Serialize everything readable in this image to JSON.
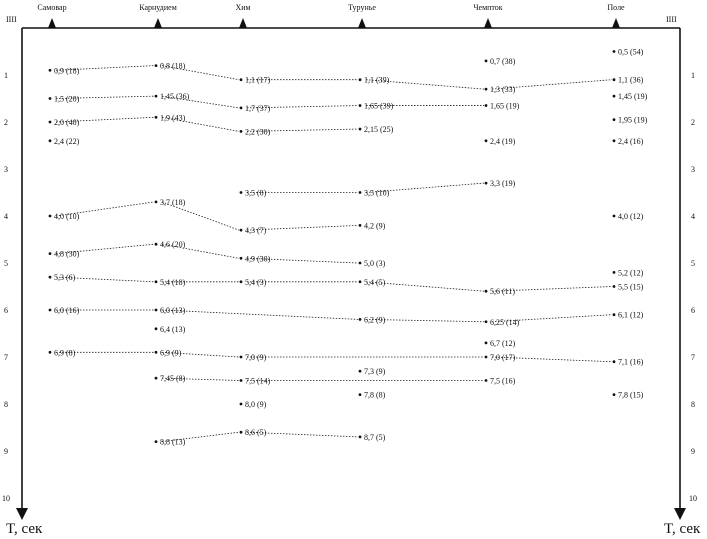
{
  "stations": [
    "Самовар",
    "Карнудием",
    "Хим",
    "Турунье",
    "Чемпток",
    "Поле"
  ],
  "port_labels": {
    "left": "IIII",
    "right": "IIII"
  },
  "axis": {
    "label_left": "T, сек",
    "label_right": "T, сек",
    "ticks": [
      1,
      2,
      3,
      4,
      5,
      6,
      7,
      8,
      9,
      10
    ],
    "t_range": [
      0,
      10
    ]
  },
  "points": [
    {
      "id": "a1",
      "station": 0,
      "t": 0.9,
      "label": "0,9 (18)"
    },
    {
      "id": "a2",
      "station": 0,
      "t": 1.5,
      "label": "1,5 (20)"
    },
    {
      "id": "a3",
      "station": 0,
      "t": 2.0,
      "label": "2,0 (40)"
    },
    {
      "id": "a4",
      "station": 0,
      "t": 2.4,
      "label": "2,4 (22)"
    },
    {
      "id": "a5",
      "station": 0,
      "t": 4.0,
      "label": "4,0 (10)"
    },
    {
      "id": "a6",
      "station": 0,
      "t": 4.8,
      "label": "4,8 (30)"
    },
    {
      "id": "a7",
      "station": 0,
      "t": 5.3,
      "label": "5,3 (6)"
    },
    {
      "id": "a8",
      "station": 0,
      "t": 6.0,
      "label": "6,0 (16)"
    },
    {
      "id": "a9",
      "station": 0,
      "t": 6.9,
      "label": "6,9 (8)"
    },
    {
      "id": "b1",
      "station": 1,
      "t": 0.8,
      "label": "0,8 (18)"
    },
    {
      "id": "b2",
      "station": 1,
      "t": 1.45,
      "label": "1,45 (36)"
    },
    {
      "id": "b3",
      "station": 1,
      "t": 1.9,
      "label": "1,9 (43)"
    },
    {
      "id": "b4",
      "station": 1,
      "t": 3.7,
      "label": "3,7 (18)"
    },
    {
      "id": "b5",
      "station": 1,
      "t": 4.6,
      "label": "4,6 (20)"
    },
    {
      "id": "b6",
      "station": 1,
      "t": 5.4,
      "label": "5,4 (18)"
    },
    {
      "id": "b7",
      "station": 1,
      "t": 6.0,
      "label": "6,0 (13)"
    },
    {
      "id": "b8",
      "station": 1,
      "t": 6.4,
      "label": "6,4 (13)"
    },
    {
      "id": "b9",
      "station": 1,
      "t": 6.9,
      "label": "6,9 (9)"
    },
    {
      "id": "b10",
      "station": 1,
      "t": 7.45,
      "label": "7,45 (8)"
    },
    {
      "id": "b11",
      "station": 1,
      "t": 8.8,
      "label": "8,8 (13)"
    },
    {
      "id": "c1",
      "station": 2,
      "t": 1.1,
      "label": "1,1 (17)"
    },
    {
      "id": "c2",
      "station": 2,
      "t": 1.7,
      "label": "1,7 (37)"
    },
    {
      "id": "c3",
      "station": 2,
      "t": 2.2,
      "label": "2,2 (30)"
    },
    {
      "id": "c4",
      "station": 2,
      "t": 3.5,
      "label": "3,5 (8)"
    },
    {
      "id": "c5",
      "station": 2,
      "t": 4.3,
      "label": "4,3 (7)"
    },
    {
      "id": "c6",
      "station": 2,
      "t": 4.9,
      "label": "4,9 (30)"
    },
    {
      "id": "c7",
      "station": 2,
      "t": 5.4,
      "label": "5,4 (3)"
    },
    {
      "id": "c8",
      "station": 2,
      "t": 7.0,
      "label": "7,0 (9)"
    },
    {
      "id": "c9",
      "station": 2,
      "t": 7.5,
      "label": "7,5 (14)"
    },
    {
      "id": "c10",
      "station": 2,
      "t": 8.0,
      "label": "8,0 (9)"
    },
    {
      "id": "c11",
      "station": 2,
      "t": 8.6,
      "label": "8,6 (5)"
    },
    {
      "id": "d1",
      "station": 3,
      "t": 1.1,
      "label": "1,1 (39)"
    },
    {
      "id": "d2",
      "station": 3,
      "t": 1.65,
      "label": "1,65 (39)"
    },
    {
      "id": "d3",
      "station": 3,
      "t": 2.15,
      "label": "2,15 (25)"
    },
    {
      "id": "d4",
      "station": 3,
      "t": 3.5,
      "label": "3,5 (10)"
    },
    {
      "id": "d5",
      "station": 3,
      "t": 4.2,
      "label": "4,2 (9)"
    },
    {
      "id": "d6",
      "station": 3,
      "t": 5.0,
      "label": "5,0 (3)"
    },
    {
      "id": "d7",
      "station": 3,
      "t": 5.4,
      "label": "5,4 (5)"
    },
    {
      "id": "d8",
      "station": 3,
      "t": 6.2,
      "label": "6,2 (9)"
    },
    {
      "id": "d9",
      "station": 3,
      "t": 7.3,
      "label": "7,3 (9)"
    },
    {
      "id": "d10",
      "station": 3,
      "t": 7.8,
      "label": "7,8 (8)"
    },
    {
      "id": "d11",
      "station": 3,
      "t": 8.7,
      "label": "8,7 (5)"
    },
    {
      "id": "e1",
      "station": 4,
      "t": 0.7,
      "label": "0,7 (38)"
    },
    {
      "id": "e2",
      "station": 4,
      "t": 1.3,
      "label": "1,3 (33)"
    },
    {
      "id": "e3",
      "station": 4,
      "t": 1.65,
      "label": "1,65 (19)"
    },
    {
      "id": "e4",
      "station": 4,
      "t": 2.4,
      "label": "2,4 (19)"
    },
    {
      "id": "e5",
      "station": 4,
      "t": 3.3,
      "label": "3,3 (19)"
    },
    {
      "id": "e6",
      "station": 4,
      "t": 5.6,
      "label": "5,6 (11)"
    },
    {
      "id": "e7",
      "station": 4,
      "t": 6.25,
      "label": "6,25 (14)"
    },
    {
      "id": "e8",
      "station": 4,
      "t": 6.7,
      "label": "6,7 (12)"
    },
    {
      "id": "e9",
      "station": 4,
      "t": 7.0,
      "label": "7,0 (17)"
    },
    {
      "id": "e10",
      "station": 4,
      "t": 7.5,
      "label": "7,5 (16)"
    },
    {
      "id": "f1",
      "station": 5,
      "t": 0.5,
      "label": "0,5 (54)"
    },
    {
      "id": "f2",
      "station": 5,
      "t": 1.1,
      "label": "1,1 (36)"
    },
    {
      "id": "f3",
      "station": 5,
      "t": 1.45,
      "label": "1,45 (19)"
    },
    {
      "id": "f4",
      "station": 5,
      "t": 1.95,
      "label": "1,95 (19)"
    },
    {
      "id": "f5",
      "station": 5,
      "t": 2.4,
      "label": "2,4 (16)"
    },
    {
      "id": "f6",
      "station": 5,
      "t": 4.0,
      "label": "4,0 (12)"
    },
    {
      "id": "f7",
      "station": 5,
      "t": 5.2,
      "label": "5,2 (12)"
    },
    {
      "id": "f8",
      "station": 5,
      "t": 5.5,
      "label": "5,5 (15)"
    },
    {
      "id": "f9",
      "station": 5,
      "t": 6.1,
      "label": "6,1 (12)"
    },
    {
      "id": "f10",
      "station": 5,
      "t": 7.1,
      "label": "7,1 (16)"
    },
    {
      "id": "f11",
      "station": 5,
      "t": 7.8,
      "label": "7,8 (15)"
    }
  ],
  "links": [
    [
      "a1",
      "b1"
    ],
    [
      "b1",
      "c1"
    ],
    [
      "c1",
      "d1"
    ],
    [
      "d1",
      "e2"
    ],
    [
      "e2",
      "f2"
    ],
    [
      "a2",
      "b2"
    ],
    [
      "b2",
      "c2"
    ],
    [
      "c2",
      "d2"
    ],
    [
      "d2",
      "e3"
    ],
    [
      "a3",
      "b3"
    ],
    [
      "b3",
      "c3"
    ],
    [
      "c3",
      "d3"
    ],
    [
      "c4",
      "d4"
    ],
    [
      "d4",
      "e5"
    ],
    [
      "a5",
      "b4"
    ],
    [
      "b4",
      "c5"
    ],
    [
      "c5",
      "d5"
    ],
    [
      "a6",
      "b5"
    ],
    [
      "b5",
      "c6"
    ],
    [
      "c6",
      "d6"
    ],
    [
      "a7",
      "b6"
    ],
    [
      "b6",
      "c7"
    ],
    [
      "c7",
      "d7"
    ],
    [
      "d7",
      "e6"
    ],
    [
      "e6",
      "f8"
    ],
    [
      "a8",
      "b7"
    ],
    [
      "b7",
      "d8"
    ],
    [
      "d8",
      "e7"
    ],
    [
      "e7",
      "f9"
    ],
    [
      "a9",
      "b9"
    ],
    [
      "b9",
      "c8"
    ],
    [
      "c8",
      "e9"
    ],
    [
      "e9",
      "f10"
    ],
    [
      "b10",
      "c9"
    ],
    [
      "c9",
      "e10"
    ],
    [
      "b11",
      "c11"
    ],
    [
      "c11",
      "d11"
    ]
  ]
}
